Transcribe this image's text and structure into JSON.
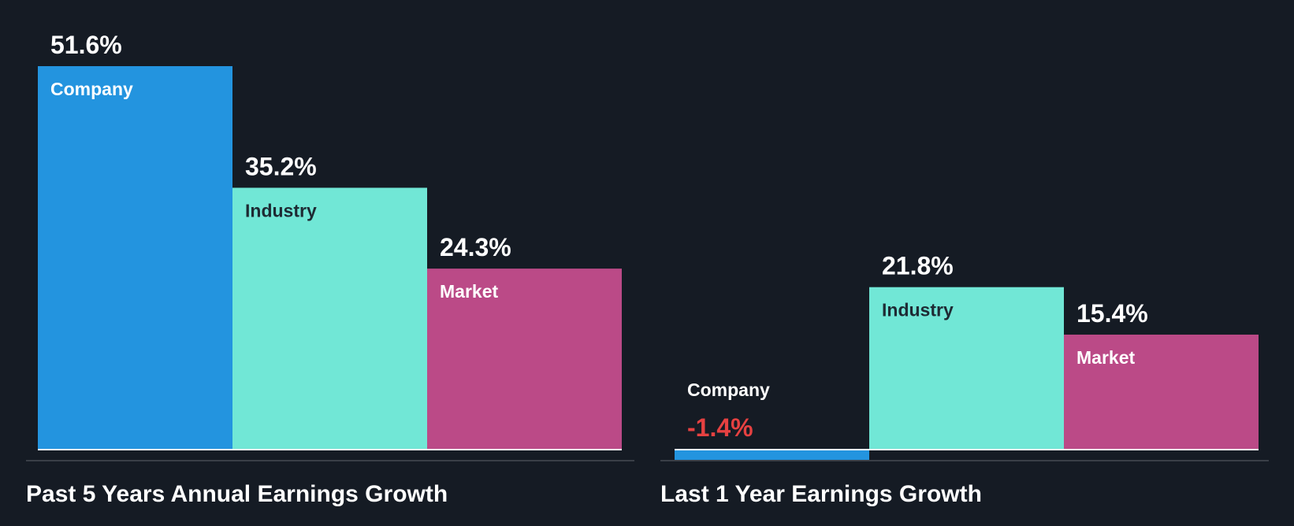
{
  "colors": {
    "background": "#151b24",
    "company": "#2394df",
    "industry": "#71e7d6",
    "market": "#bb4a87",
    "negative_value": "#e64141",
    "value_text": "#ffffff",
    "axis_line": "#ffffff",
    "base_line": "#3a3f47"
  },
  "chart_data": [
    {
      "type": "bar",
      "title": "Past 5 Years Annual Earnings Growth",
      "categories": [
        "Company",
        "Industry",
        "Market"
      ],
      "values": [
        51.6,
        35.2,
        24.3
      ],
      "value_labels": [
        "51.6%",
        "35.2%",
        "24.3%"
      ],
      "ylim": [
        0,
        51.6
      ],
      "grid": false
    },
    {
      "type": "bar",
      "title": "Last 1 Year Earnings Growth",
      "categories": [
        "Company",
        "Industry",
        "Market"
      ],
      "values": [
        -1.4,
        21.8,
        15.4
      ],
      "value_labels": [
        "-1.4%",
        "21.8%",
        "15.4%"
      ],
      "ylim": [
        -1.4,
        51.6
      ],
      "grid": false
    }
  ]
}
